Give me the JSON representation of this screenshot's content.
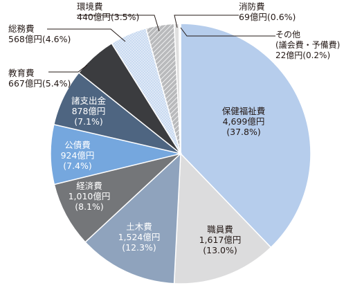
{
  "chart_data": {
    "type": "pie",
    "title": "",
    "slices": [
      {
        "name": "保健福祉費",
        "amount": "4,699億円",
        "percent": "(37.8%)",
        "value": 37.8,
        "color": "#b6cdec",
        "text": "dark",
        "pattern": "none"
      },
      {
        "name": "職員費",
        "amount": "1,617億円",
        "percent": "(13.0%)",
        "value": 13.0,
        "color": "#dcdcdd",
        "text": "dark",
        "pattern": "none"
      },
      {
        "name": "土木費",
        "amount": "1,524億円",
        "percent": "(12.3%)",
        "value": 12.3,
        "color": "#8fa3bd",
        "text": "light",
        "pattern": "none"
      },
      {
        "name": "経済費",
        "amount": "1,010億円",
        "percent": "(8.1%)",
        "value": 8.1,
        "color": "#747679",
        "text": "light",
        "pattern": "none"
      },
      {
        "name": "公債費",
        "amount": "924億円",
        "percent": "(7.4%)",
        "value": 7.4,
        "color": "#75a7de",
        "text": "light",
        "pattern": "none"
      },
      {
        "name": "諸支出金",
        "amount": "878億円",
        "percent": "(7.1%)",
        "value": 7.1,
        "color": "#4e6581",
        "text": "light",
        "pattern": "none"
      },
      {
        "name": "教育費",
        "amount": "667億円",
        "percent": "(5.4%)",
        "value": 5.4,
        "color": "#3b3c3f",
        "text": "dark",
        "pattern": "none"
      },
      {
        "name": "総務費",
        "amount": "568億円",
        "percent": "(4.6%)",
        "value": 4.6,
        "color": "#c9daf1",
        "text": "dark",
        "pattern": "dots"
      },
      {
        "name": "環境費",
        "amount": "440億円",
        "percent": "(3.5%)",
        "value": 3.5,
        "color": "#b9babc",
        "text": "dark",
        "pattern": "hatch"
      },
      {
        "name": "消防費",
        "amount": "69億円",
        "percent": "(0.6%)",
        "value": 0.6,
        "color": "#e0e0e0",
        "text": "dark",
        "pattern": "none"
      },
      {
        "name": "その他\n(議会費・予備費)",
        "amount": "22億円",
        "percent": "(0.2%)",
        "value": 0.2,
        "color": "#ffffff",
        "text": "dark",
        "pattern": "none"
      }
    ]
  }
}
